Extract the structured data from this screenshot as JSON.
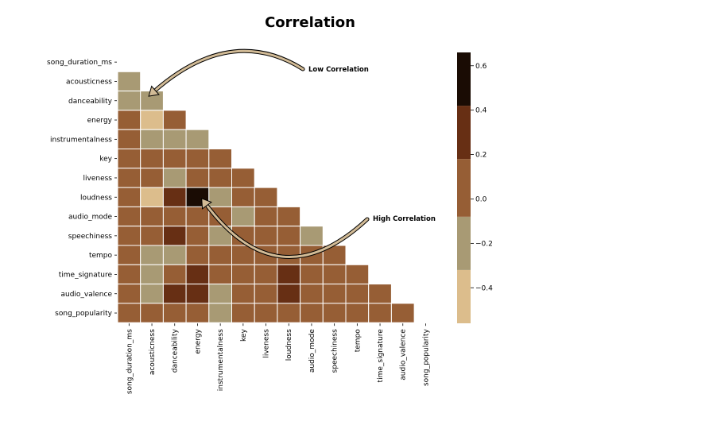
{
  "chart_data": {
    "type": "heatmap",
    "title": "Correlation",
    "labels": [
      "song_duration_ms",
      "acousticness",
      "danceability",
      "energy",
      "instrumentalness",
      "key",
      "liveness",
      "loudness",
      "audio_mode",
      "speechiness",
      "tempo",
      "time_signature",
      "audio_valence",
      "song_popularity"
    ],
    "matrix": [
      [
        1.0,
        -0.1,
        -0.1,
        0.09,
        -0.02,
        0.0,
        0.01,
        0.05,
        -0.01,
        -0.02,
        0.01,
        0.02,
        -0.07,
        -0.02
      ],
      [
        -0.1,
        1.0,
        -0.2,
        -0.66,
        -0.16,
        -0.02,
        -0.08,
        -0.56,
        0.01,
        -0.07,
        -0.15,
        -0.17,
        -0.14,
        -0.07
      ],
      [
        -0.1,
        -0.2,
        1.0,
        0.03,
        -0.1,
        0.01,
        -0.1,
        0.31,
        -0.06,
        0.26,
        -0.15,
        0.12,
        0.34,
        0.1
      ],
      [
        0.09,
        -0.66,
        0.03,
        1.0,
        -0.15,
        0.02,
        0.17,
        0.76,
        -0.05,
        0.06,
        0.16,
        0.22,
        0.33,
        0.01
      ],
      [
        -0.02,
        -0.16,
        -0.1,
        -0.15,
        1.0,
        -0.01,
        -0.04,
        -0.17,
        -0.05,
        -0.11,
        -0.01,
        -0.07,
        -0.17,
        -0.1
      ],
      [
        0.0,
        -0.02,
        0.01,
        0.02,
        -0.01,
        1.0,
        0.0,
        0.01,
        -0.17,
        0.02,
        -0.01,
        0.0,
        0.03,
        -0.01
      ],
      [
        0.01,
        -0.08,
        -0.1,
        0.17,
        -0.04,
        0.0,
        1.0,
        0.1,
        0.0,
        0.09,
        0.03,
        0.02,
        0.02,
        -0.04
      ],
      [
        0.05,
        -0.56,
        0.31,
        0.76,
        -0.17,
        0.01,
        0.1,
        1.0,
        -0.03,
        0.02,
        0.13,
        0.22,
        0.27,
        0.1
      ],
      [
        -0.01,
        0.01,
        -0.06,
        -0.05,
        -0.05,
        -0.17,
        0.0,
        -0.03,
        1.0,
        -0.11,
        0.03,
        -0.02,
        0.0,
        -0.01
      ],
      [
        -0.02,
        -0.07,
        0.26,
        0.06,
        -0.11,
        0.02,
        0.09,
        0.02,
        -0.11,
        1.0,
        0.04,
        0.07,
        0.02,
        0.02
      ],
      [
        0.01,
        -0.15,
        -0.15,
        0.16,
        -0.01,
        -0.01,
        0.03,
        0.13,
        0.03,
        0.04,
        1.0,
        0.0,
        0.06,
        -0.03
      ],
      [
        0.02,
        -0.17,
        0.12,
        0.22,
        -0.07,
        0.0,
        0.02,
        0.22,
        -0.02,
        0.07,
        0.0,
        1.0,
        0.11,
        0.03
      ],
      [
        -0.07,
        -0.14,
        0.34,
        0.33,
        -0.17,
        0.03,
        0.02,
        0.27,
        0.0,
        0.02,
        0.06,
        0.11,
        1.0,
        -0.05
      ],
      [
        -0.02,
        -0.07,
        0.1,
        0.01,
        -0.1,
        -0.01,
        -0.04,
        0.1,
        -0.01,
        0.02,
        -0.03,
        0.03,
        -0.05,
        1.0
      ]
    ],
    "mask": "upper-triangle-including-diagonal",
    "colorbar": {
      "range": [
        -0.56,
        0.66
      ],
      "ticks": [
        -0.4,
        -0.2,
        0.0,
        0.2,
        0.4,
        0.6
      ],
      "tick_labels": [
        "−0.4",
        "−0.2",
        "0.0",
        "0.2",
        "0.4",
        "0.6"
      ],
      "bins": [
        {
          "from": -0.56,
          "to": -0.32,
          "color": "#dcbd8c"
        },
        {
          "from": -0.32,
          "to": -0.08,
          "color": "#a89a74"
        },
        {
          "from": -0.08,
          "to": 0.18,
          "color": "#965e35"
        },
        {
          "from": 0.18,
          "to": 0.42,
          "color": "#672f14"
        },
        {
          "from": 0.42,
          "to": 0.66,
          "color": "#1a0c04"
        }
      ]
    },
    "annotations": [
      {
        "text": "Low Correlation",
        "target_row": "danceability",
        "target_col": "acousticness"
      },
      {
        "text": "High Correlation",
        "target_row": "loudness",
        "target_col": "energy"
      }
    ],
    "grid": false,
    "cell_border_color": "#ffffff",
    "arrow_fill": "#d2bb96",
    "arrow_edge": "#000000"
  }
}
